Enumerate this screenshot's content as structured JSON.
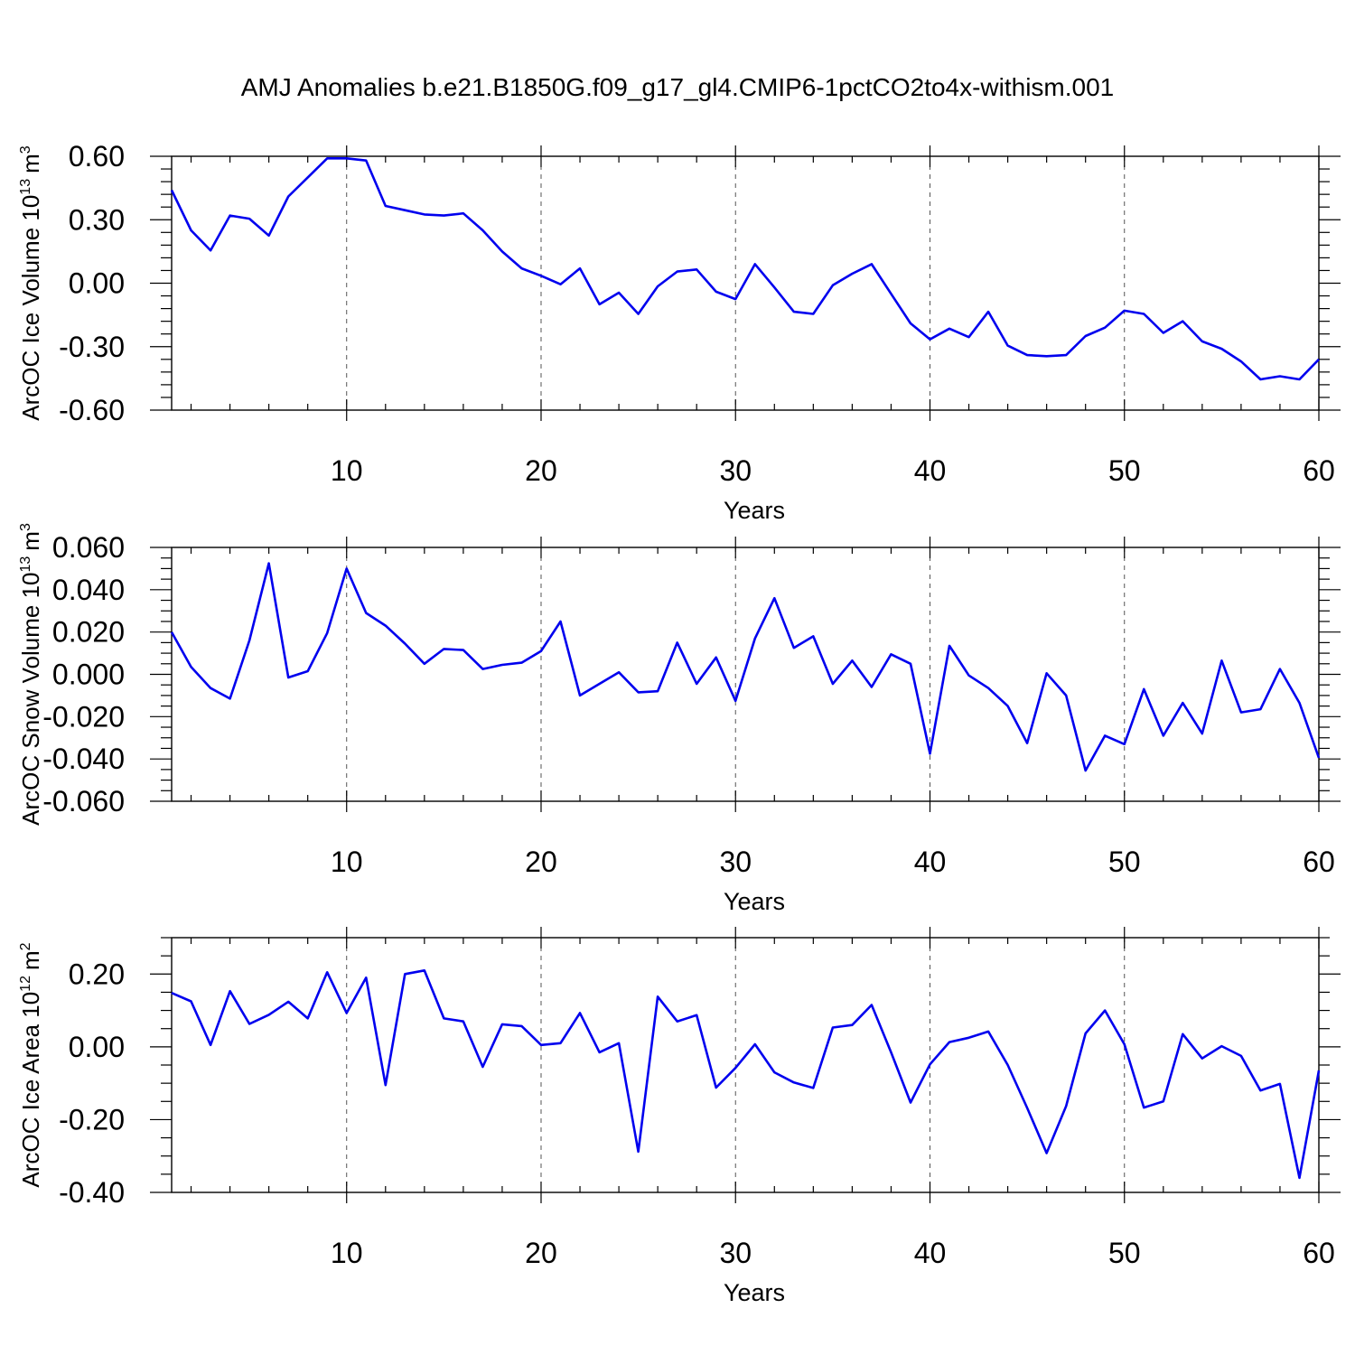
{
  "title": "AMJ Anomalies b.e21.B1850G.f09_g17_gl4.CMIP6-1pctCO2to4x-withism.001",
  "line_color": "#0000ee",
  "chart_data": [
    {
      "type": "line",
      "ylabel_main": "ArcOC Ice Volume 10",
      "ylabel_exp": "13",
      "ylabel_unit": "m",
      "ylabel_unit_exp": "3",
      "xlabel": "Years",
      "xlim": [
        1,
        60
      ],
      "ylim": [
        -0.6,
        0.6
      ],
      "yticks": [
        -0.6,
        -0.3,
        0.0,
        0.3,
        0.6
      ],
      "ytick_labels": [
        "-0.60",
        "-0.30",
        "0.00",
        "0.30",
        "0.60"
      ],
      "yminor_step": 0.06,
      "xticks": [
        10,
        20,
        30,
        40,
        50,
        60
      ],
      "xtick_labels": [
        "10",
        "20",
        "30",
        "40",
        "50",
        "60"
      ],
      "grid_x": [
        10,
        20,
        30,
        40,
        50
      ],
      "series": [
        {
          "x": [
            1,
            2,
            3,
            4,
            5,
            6,
            7,
            8,
            9,
            10,
            11,
            12,
            13,
            14,
            15,
            16,
            17,
            18,
            19,
            20,
            21,
            22,
            23,
            24,
            25,
            26,
            27,
            28,
            29,
            30,
            31,
            32,
            33,
            34,
            35,
            36,
            37,
            38,
            39,
            40,
            41,
            42,
            43,
            44,
            45,
            46,
            47,
            48,
            49,
            50,
            51,
            52,
            53,
            54,
            55,
            56,
            57,
            58,
            59,
            60
          ],
          "values": [
            0.44,
            0.25,
            0.155,
            0.32,
            0.305,
            0.225,
            0.41,
            0.5,
            0.59,
            0.59,
            0.58,
            0.365,
            0.345,
            0.325,
            0.32,
            0.33,
            0.25,
            0.15,
            0.07,
            0.035,
            -0.005,
            0.07,
            -0.1,
            -0.045,
            -0.145,
            -0.015,
            0.055,
            0.065,
            -0.04,
            -0.075,
            0.09,
            -0.02,
            -0.135,
            -0.145,
            -0.01,
            0.045,
            0.09,
            -0.05,
            -0.19,
            -0.265,
            -0.215,
            -0.255,
            -0.135,
            -0.295,
            -0.34,
            -0.345,
            -0.34,
            -0.25,
            -0.21,
            -0.13,
            -0.145,
            -0.235,
            -0.18,
            -0.275,
            -0.31,
            -0.37,
            -0.455,
            -0.44,
            -0.455,
            -0.36
          ]
        }
      ]
    },
    {
      "type": "line",
      "ylabel_main": "ArcOC Snow Volume 10",
      "ylabel_exp": "13",
      "ylabel_unit": "m",
      "ylabel_unit_exp": "3",
      "xlabel": "Years",
      "xlim": [
        1,
        60
      ],
      "ylim": [
        -0.06,
        0.06
      ],
      "yticks": [
        -0.06,
        -0.04,
        -0.02,
        0.0,
        0.02,
        0.04,
        0.06
      ],
      "ytick_labels": [
        "-0.060",
        "-0.040",
        "-0.020",
        "0.000",
        "0.020",
        "0.040",
        "0.060"
      ],
      "yminor_step": 0.005,
      "xticks": [
        10,
        20,
        30,
        40,
        50,
        60
      ],
      "xtick_labels": [
        "10",
        "20",
        "30",
        "40",
        "50",
        "60"
      ],
      "grid_x": [
        10,
        20,
        30,
        40,
        50
      ],
      "series": [
        {
          "x": [
            1,
            2,
            3,
            4,
            5,
            6,
            7,
            8,
            9,
            10,
            11,
            12,
            13,
            14,
            15,
            16,
            17,
            18,
            19,
            20,
            21,
            22,
            23,
            24,
            25,
            26,
            27,
            28,
            29,
            30,
            31,
            32,
            33,
            34,
            35,
            36,
            37,
            38,
            39,
            40,
            41,
            42,
            43,
            44,
            45,
            46,
            47,
            48,
            49,
            50,
            51,
            52,
            53,
            54,
            55,
            56,
            57,
            58,
            59,
            60
          ],
          "values": [
            0.02,
            0.0035,
            -0.0065,
            -0.0115,
            0.016,
            0.0525,
            -0.0015,
            0.0015,
            0.0195,
            0.05,
            0.029,
            0.023,
            0.0145,
            0.005,
            0.012,
            0.0115,
            0.0025,
            0.0045,
            0.0055,
            0.011,
            0.025,
            -0.01,
            -0.0045,
            0.001,
            -0.0085,
            -0.008,
            0.015,
            -0.0045,
            0.008,
            -0.0125,
            0.017,
            0.036,
            0.0125,
            0.018,
            -0.0045,
            0.0065,
            -0.006,
            0.0095,
            0.005,
            -0.0375,
            0.0135,
            -0.0005,
            -0.0065,
            -0.015,
            -0.0325,
            0.0005,
            -0.01,
            -0.0455,
            -0.029,
            -0.033,
            -0.007,
            -0.029,
            -0.0135,
            -0.028,
            0.0065,
            -0.018,
            -0.0165,
            0.0025,
            -0.0135,
            -0.0395
          ]
        }
      ]
    },
    {
      "type": "line",
      "ylabel_main": "ArcOC Ice Area 10",
      "ylabel_exp": "12",
      "ylabel_unit": "m",
      "ylabel_unit_exp": "2",
      "xlabel": "Years",
      "xlim": [
        1,
        60
      ],
      "ylim": [
        -0.4,
        0.3
      ],
      "yticks": [
        -0.4,
        -0.2,
        0.0,
        0.2
      ],
      "ytick_labels": [
        "-0.40",
        "-0.20",
        "0.00",
        "0.20"
      ],
      "yminor_step": 0.05,
      "xticks": [
        10,
        20,
        30,
        40,
        50,
        60
      ],
      "xtick_labels": [
        "10",
        "20",
        "30",
        "40",
        "50",
        "60"
      ],
      "grid_x": [
        10,
        20,
        30,
        40,
        50
      ],
      "series": [
        {
          "x": [
            1,
            2,
            3,
            4,
            5,
            6,
            7,
            8,
            9,
            10,
            11,
            12,
            13,
            14,
            15,
            16,
            17,
            18,
            19,
            20,
            21,
            22,
            23,
            24,
            25,
            26,
            27,
            28,
            29,
            30,
            31,
            32,
            33,
            34,
            35,
            36,
            37,
            38,
            39,
            40,
            41,
            42,
            43,
            44,
            45,
            46,
            47,
            48,
            49,
            50,
            51,
            52,
            53,
            54,
            55,
            56,
            57,
            58,
            59,
            60
          ],
          "values": [
            0.148,
            0.125,
            0.005,
            0.153,
            0.063,
            0.088,
            0.124,
            0.078,
            0.205,
            0.093,
            0.19,
            -0.105,
            0.2,
            0.21,
            0.078,
            0.07,
            -0.055,
            0.062,
            0.057,
            0.005,
            0.01,
            0.093,
            -0.015,
            0.01,
            -0.288,
            0.138,
            0.07,
            0.087,
            -0.112,
            -0.058,
            0.007,
            -0.07,
            -0.098,
            -0.113,
            0.053,
            0.06,
            0.115,
            -0.015,
            -0.153,
            -0.048,
            0.013,
            0.025,
            0.042,
            -0.05,
            -0.168,
            -0.292,
            -0.163,
            0.037,
            0.1,
            0.007,
            -0.167,
            -0.15,
            0.035,
            -0.032,
            0.002,
            -0.025,
            -0.12,
            -0.102,
            -0.36,
            -0.065
          ]
        }
      ]
    }
  ]
}
